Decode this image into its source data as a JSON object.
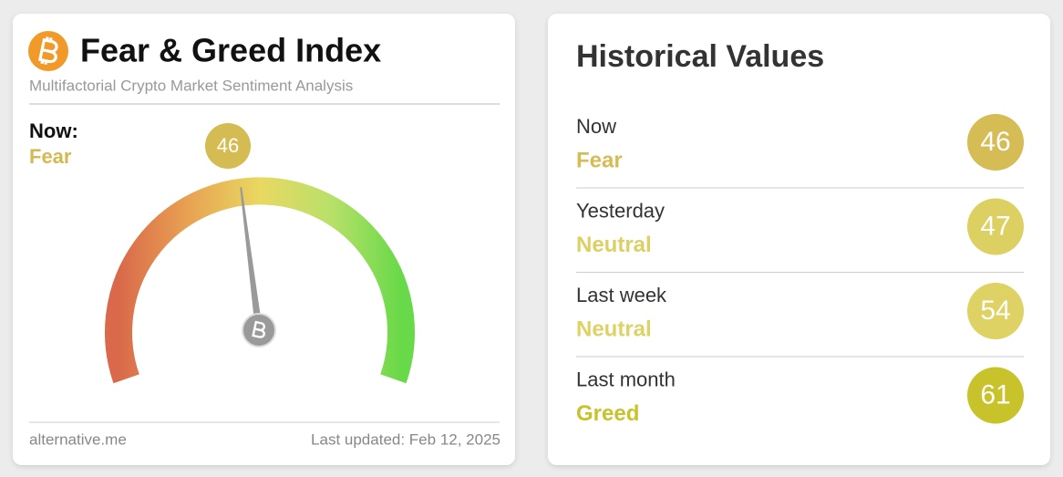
{
  "gauge_card": {
    "title": "Fear & Greed Index",
    "subtitle": "Multifactorial Crypto Market Sentiment Analysis",
    "now_label": "Now:",
    "now_classification": "Fear",
    "value": 46,
    "badge_color": "#d4bb52",
    "classification_color": "#d4b94e",
    "source": "alternative.me",
    "last_updated": "Last updated: Feb 12, 2025"
  },
  "history_card": {
    "title": "Historical Values",
    "rows": [
      {
        "period": "Now",
        "classification": "Fear",
        "value": 46,
        "color": "#d6bc55"
      },
      {
        "period": "Yesterday",
        "classification": "Neutral",
        "value": 47,
        "color": "#ddd063"
      },
      {
        "period": "Last week",
        "classification": "Neutral",
        "value": 54,
        "color": "#ddd263"
      },
      {
        "period": "Last month",
        "classification": "Greed",
        "value": 61,
        "color": "#c8c32a"
      }
    ]
  }
}
